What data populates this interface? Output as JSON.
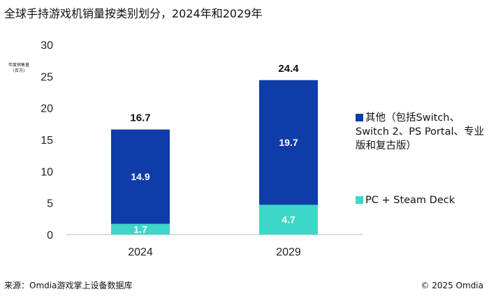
{
  "chart_data": {
    "type": "bar",
    "stacked": true,
    "title": "全球手持游戏机销量按类别划分，2024年和2029年",
    "ylabel": "年度销售量\n(百万)",
    "xlabel": "",
    "ylim": [
      0,
      30
    ],
    "yticks": [
      0,
      5,
      10,
      15,
      20,
      25,
      30
    ],
    "categories": [
      "2024",
      "2029"
    ],
    "series": [
      {
        "name": "PC + Steam Deck",
        "values": [
          1.7,
          4.7
        ],
        "color": "#3ed6c9",
        "labels": [
          "1.7",
          "4.7"
        ]
      },
      {
        "name": "其他（包括Switch、Switch 2、PS Portal、专业版和复古版）",
        "values": [
          14.9,
          19.7
        ],
        "color": "#0f3ca8",
        "labels": [
          "14.9",
          "19.7"
        ]
      }
    ],
    "totals": [
      "16.7",
      "24.4"
    ],
    "grid": false,
    "legend": "right"
  },
  "footer": {
    "source": "来源：Omdia游戏掌上设备数据库",
    "copyright": "© 2025 Omdia"
  }
}
